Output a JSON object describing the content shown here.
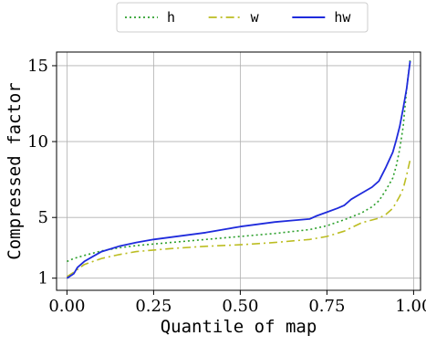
{
  "chart_data": {
    "type": "line",
    "xlabel": "Quantile of map",
    "ylabel": "Compressed factor",
    "xlim": [
      -0.03,
      1.02
    ],
    "ylim": [
      0.2,
      15.9
    ],
    "xticks": [
      0.0,
      0.25,
      0.5,
      0.75,
      1.0
    ],
    "xtick_labels": [
      "0.00",
      "0.25",
      "0.50",
      "0.75",
      "1.00"
    ],
    "yticks": [
      1,
      5,
      10,
      15
    ],
    "ytick_labels": [
      "1",
      "5",
      "10",
      "15"
    ],
    "grid": true,
    "legend_placement": "top-center-outside",
    "series": [
      {
        "name": "h",
        "color": "#2ca02c",
        "style": "dotted",
        "x": [
          0.0,
          0.02,
          0.05,
          0.1,
          0.15,
          0.2,
          0.3,
          0.4,
          0.5,
          0.6,
          0.7,
          0.75,
          0.8,
          0.85,
          0.88,
          0.9,
          0.92,
          0.94,
          0.95,
          0.96,
          0.97,
          0.98,
          0.99
        ],
        "y": [
          2.1,
          2.3,
          2.5,
          2.8,
          3.0,
          3.15,
          3.35,
          3.55,
          3.75,
          3.95,
          4.2,
          4.45,
          4.85,
          5.3,
          5.7,
          6.1,
          6.8,
          7.6,
          8.4,
          9.5,
          11.0,
          13.5,
          15.4
        ]
      },
      {
        "name": "w",
        "color": "#bcbd22",
        "style": "dashdot",
        "x": [
          0.0,
          0.02,
          0.05,
          0.1,
          0.15,
          0.2,
          0.3,
          0.4,
          0.5,
          0.6,
          0.7,
          0.75,
          0.8,
          0.85,
          0.9,
          0.92,
          0.94,
          0.95,
          0.96,
          0.97,
          0.98,
          0.99
        ],
        "y": [
          1.1,
          1.4,
          1.9,
          2.3,
          2.55,
          2.75,
          2.95,
          3.1,
          3.2,
          3.35,
          3.55,
          3.75,
          4.1,
          4.65,
          4.95,
          5.2,
          5.6,
          6.0,
          6.4,
          6.9,
          7.8,
          8.8
        ]
      },
      {
        "name": "hw",
        "color": "#1f2bdc",
        "style": "solid",
        "x": [
          0.0,
          0.02,
          0.03,
          0.05,
          0.08,
          0.1,
          0.15,
          0.2,
          0.25,
          0.3,
          0.35,
          0.4,
          0.45,
          0.5,
          0.55,
          0.6,
          0.65,
          0.7,
          0.72,
          0.75,
          0.78,
          0.8,
          0.82,
          0.85,
          0.88,
          0.9,
          0.92,
          0.94,
          0.95,
          0.96,
          0.97,
          0.98,
          0.99
        ],
        "y": [
          1.0,
          1.3,
          1.7,
          2.1,
          2.5,
          2.75,
          3.1,
          3.35,
          3.55,
          3.7,
          3.85,
          4.0,
          4.2,
          4.4,
          4.55,
          4.7,
          4.8,
          4.9,
          5.1,
          5.35,
          5.6,
          5.8,
          6.2,
          6.6,
          7.0,
          7.4,
          8.3,
          9.3,
          10.1,
          11.0,
          12.2,
          13.5,
          15.3
        ]
      }
    ]
  }
}
